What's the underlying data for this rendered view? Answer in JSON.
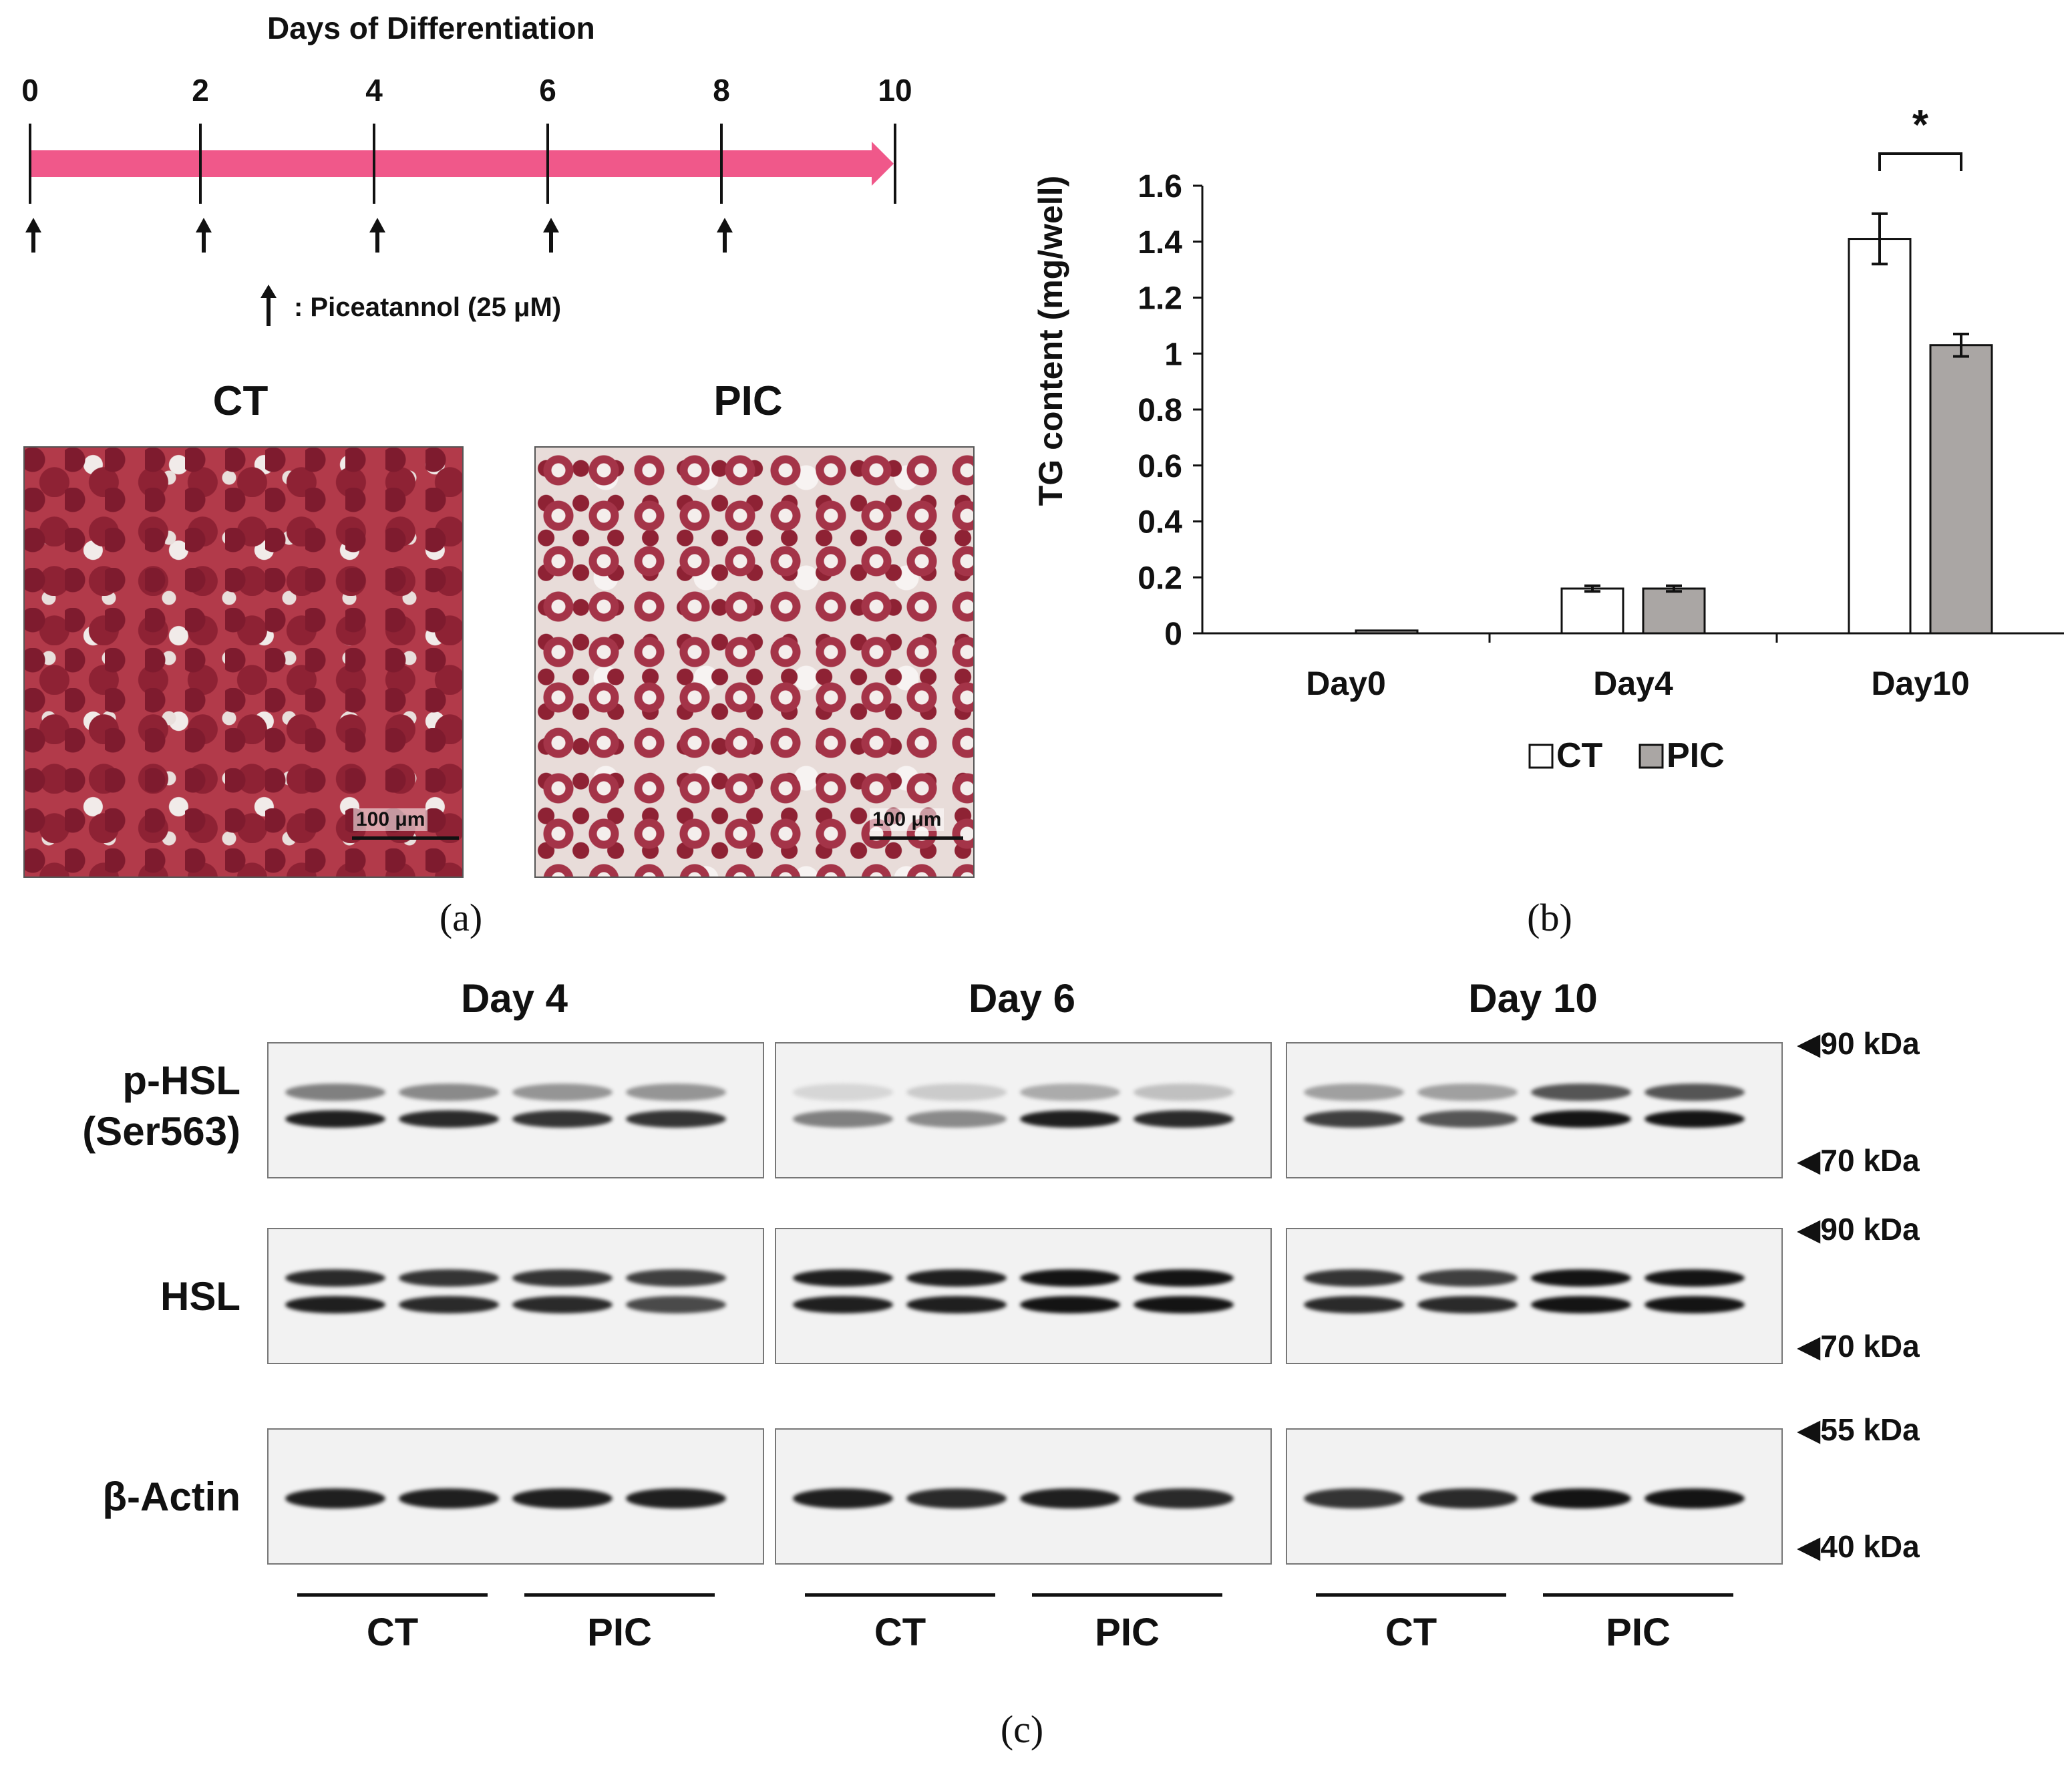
{
  "panel_a": {
    "timeline": {
      "title": "Days of Differentiation",
      "ticks": [
        "0",
        "2",
        "4",
        "6",
        "8",
        "10"
      ],
      "treatment_days": [
        0,
        2,
        4,
        6,
        8
      ],
      "legend": ": Piceatannol (25 μM)",
      "arrow_color": "#f0588a"
    },
    "images": [
      {
        "label": "CT",
        "scale": "100 μm"
      },
      {
        "label": "PIC",
        "scale": "100 μm"
      }
    ],
    "caption": "(a)"
  },
  "chart_data": {
    "type": "bar",
    "title": "",
    "ylabel": "TG content (mg/well)",
    "xlabel": "",
    "categories": [
      "Day0",
      "Day4",
      "Day10"
    ],
    "series": [
      {
        "name": "CT",
        "values": [
          0.0,
          0.16,
          1.41
        ],
        "errors": [
          0.0,
          0.01,
          0.09
        ],
        "color": "#ffffff"
      },
      {
        "name": "PIC",
        "values": [
          0.01,
          0.16,
          1.03
        ],
        "errors": [
          0.0,
          0.01,
          0.04
        ],
        "color": "#aaa6a4"
      }
    ],
    "ylim": [
      0,
      1.6
    ],
    "yticks": [
      "0",
      "0.2",
      "0.4",
      "0.6",
      "0.8",
      "1",
      "1.2",
      "1.4",
      "1.6"
    ],
    "annotation": "*",
    "legend_position": "bottom-center",
    "grid": false
  },
  "panel_b": {
    "caption": "(b)"
  },
  "panel_c": {
    "days": [
      "Day 4",
      "Day 6",
      "Day 10"
    ],
    "rows": [
      {
        "label": [
          "p-HSL",
          "(Ser563)"
        ],
        "markers": [
          "90 kDa",
          "70 kDa"
        ]
      },
      {
        "label": [
          "HSL"
        ],
        "markers": [
          "90 kDa",
          "70 kDa"
        ]
      },
      {
        "label": [
          "β-Actin"
        ],
        "markers": [
          "55 kDa",
          "40 kDa"
        ]
      }
    ],
    "groups": [
      "CT",
      "PIC",
      "CT",
      "PIC",
      "CT",
      "PIC"
    ],
    "caption": "(c)"
  }
}
